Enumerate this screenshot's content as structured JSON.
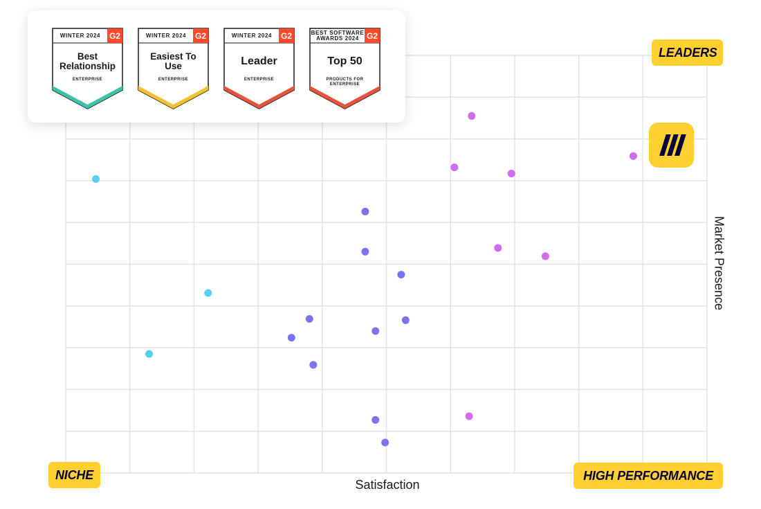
{
  "chart_data": {
    "type": "scatter",
    "xlabel": "Satisfaction",
    "ylabel": "Market Presence",
    "xlim": [
      0,
      10
    ],
    "ylim": [
      0,
      10
    ],
    "grid": true,
    "quadrants": {
      "top_right": "LEADERS",
      "bottom_left": "NICHE",
      "bottom_right": "HIGH PERFORMANCE"
    },
    "series": [
      {
        "color": "#55CFF4",
        "points": [
          [
            0.47,
            7.04
          ],
          [
            2.22,
            4.31
          ],
          [
            1.3,
            2.85
          ]
        ]
      },
      {
        "color": "#7B74F2",
        "points": [
          [
            4.67,
            6.26
          ],
          [
            4.67,
            5.3
          ],
          [
            5.23,
            4.75
          ],
          [
            3.8,
            3.69
          ],
          [
            5.3,
            3.66
          ],
          [
            4.83,
            3.4
          ],
          [
            3.52,
            3.24
          ],
          [
            3.86,
            2.59
          ],
          [
            4.83,
            1.27
          ],
          [
            4.98,
            0.73
          ]
        ]
      },
      {
        "color": "#D16BEF",
        "points": [
          [
            6.33,
            8.55
          ],
          [
            6.06,
            7.32
          ],
          [
            6.95,
            7.17
          ],
          [
            8.85,
            7.59
          ],
          [
            6.74,
            5.39
          ],
          [
            7.48,
            5.19
          ],
          [
            6.29,
            1.36
          ]
        ]
      }
    ],
    "highlight": {
      "x": 9.6,
      "y": 7.86,
      "icon": "miro-logo-icon",
      "color": "#FFD02F"
    }
  },
  "badges": [
    {
      "top": "WINTER  2024",
      "title": "Best Relationship",
      "sub": "ENTERPRISE",
      "accent": "#3FC1A8",
      "g2": "G2"
    },
    {
      "top": "WINTER  2024",
      "title": "Easiest To Use",
      "sub": "ENTERPRISE",
      "accent": "#F2C230",
      "g2": "G2"
    },
    {
      "top": "WINTER  2024",
      "title": "Leader",
      "sub": "ENTERPRISE",
      "accent": "#E5533B",
      "g2": "G2"
    },
    {
      "top": "BEST SOFTWARE AWARDS 2024",
      "title": "Top 50",
      "sub": "PRODUCTS FOR ENTERPRISE",
      "accent": "#E5533B",
      "g2": "G2"
    }
  ],
  "colors": {
    "label_bg": "#FFD02F",
    "label_text": "#050038",
    "g2_red": "#FF492C",
    "grid": "#E3E3E3"
  }
}
